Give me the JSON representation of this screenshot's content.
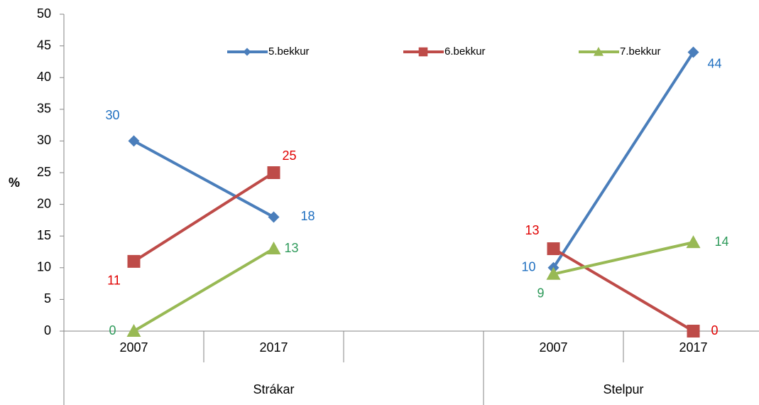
{
  "chart_data": {
    "type": "line",
    "y_label": "%",
    "categories": [
      "2007",
      "2017",
      null,
      "2007",
      "2017"
    ],
    "groups": [
      "Strákar",
      "Strákar",
      "Strákar",
      "Stelpur",
      "Stelpur"
    ],
    "series": [
      {
        "name": "5.bekkur",
        "color": "#4a7ebb",
        "label_color": "#1f6fc0",
        "marker": "diamond",
        "values": [
          30,
          18,
          null,
          10,
          44
        ]
      },
      {
        "name": "6.bekkur",
        "color": "#be4b48",
        "label_color": "#e00000",
        "marker": "square",
        "values": [
          11,
          25,
          null,
          13,
          0
        ]
      },
      {
        "name": "7.bekkur",
        "color": "#98b954",
        "label_color": "#2e9a5a",
        "marker": "triangle",
        "values": [
          0,
          13,
          null,
          9,
          14
        ]
      }
    ],
    "ylim": [
      0,
      50
    ],
    "yticks": [
      0,
      5,
      10,
      15,
      20,
      25,
      30,
      35,
      40,
      45,
      50
    ],
    "legend": "top"
  }
}
